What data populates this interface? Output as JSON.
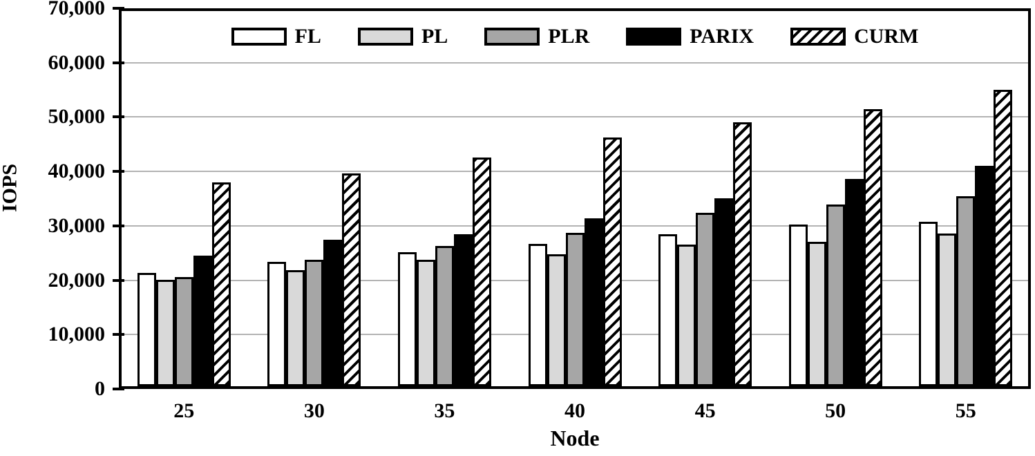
{
  "chart_data": {
    "type": "bar",
    "title": "",
    "xlabel": "Node",
    "ylabel": "IOPS",
    "categories": [
      "25",
      "30",
      "35",
      "40",
      "45",
      "50",
      "55"
    ],
    "series": [
      {
        "name": "FL",
        "fill": "#ffffff",
        "pattern": "solid",
        "values": [
          21400,
          23400,
          25200,
          26700,
          28500,
          30200,
          30700
        ]
      },
      {
        "name": "PL",
        "fill": "#d9d9d9",
        "pattern": "solid",
        "values": [
          20100,
          21900,
          23800,
          24800,
          26600,
          27100,
          28600
        ]
      },
      {
        "name": "PLR",
        "fill": "#a6a6a6",
        "pattern": "solid",
        "values": [
          20600,
          23700,
          26300,
          28700,
          32400,
          33900,
          35400
        ]
      },
      {
        "name": "PARIX",
        "fill": "#000000",
        "pattern": "solid",
        "values": [
          24500,
          27400,
          28400,
          31400,
          35100,
          38600,
          41000
        ]
      },
      {
        "name": "CURM",
        "fill": "#ffffff",
        "pattern": "diagonal-hatch",
        "values": [
          38000,
          39700,
          42500,
          46300,
          49000,
          51400,
          55000
        ]
      }
    ],
    "ylim": [
      0,
      70000
    ],
    "ytick_step": 10000,
    "ytick_labels": [
      "0",
      "10,000",
      "20,000",
      "30,000",
      "40,000",
      "50,000",
      "60,000",
      "70,000"
    ],
    "grid": true,
    "legend_position": "top-inside"
  },
  "colors": {
    "axis": "#000000",
    "gridline": "#b3b3b3",
    "bar_fills": {
      "FL": "#ffffff",
      "PL": "#d9d9d9",
      "PLR": "#a6a6a6",
      "PARIX": "#000000",
      "CURM": "hatch"
    }
  }
}
